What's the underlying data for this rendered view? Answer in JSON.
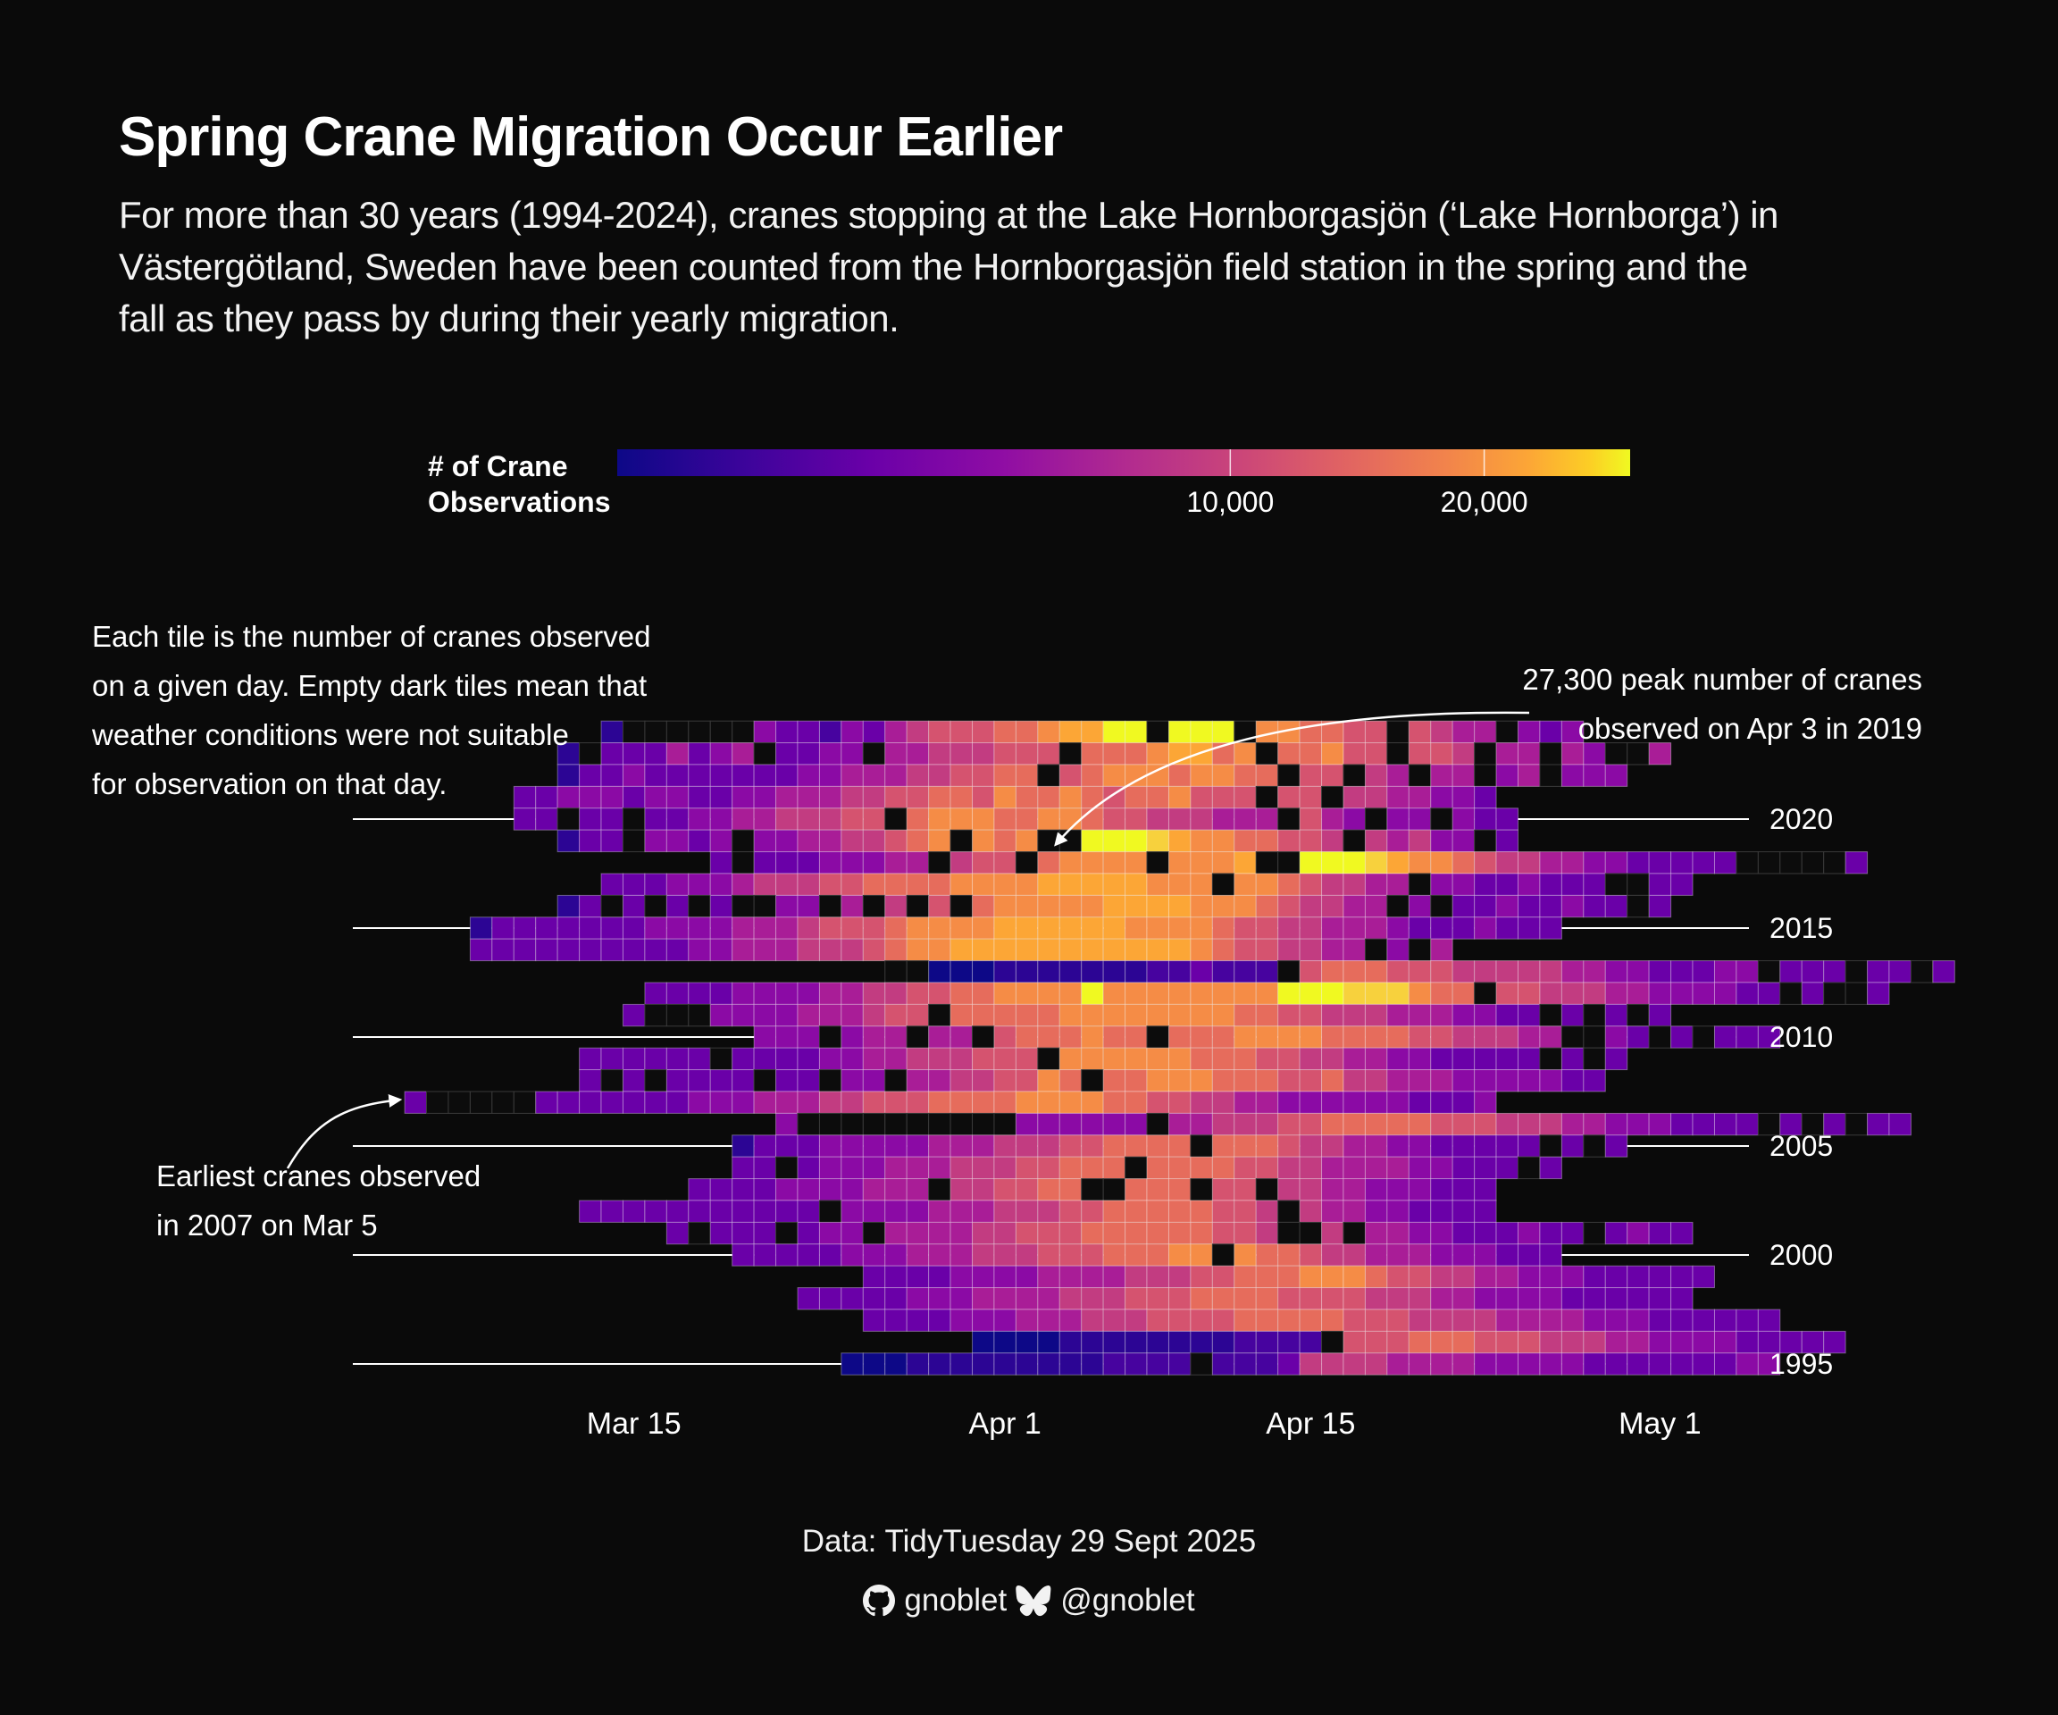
{
  "title": "Spring Crane Migration Occur Earlier",
  "subtitle": "For more than 30 years (1994-2024), cranes stopping at the Lake Hornborgasjön (‘Lake Hornborga’) in Västergötland, Sweden have been counted from the Hornborgasjön field station in the spring and the fall as they pass by during their yearly migration.",
  "caption": {
    "source": "Data: TidyTuesday 29 Sept 2025",
    "github_icon": "github-icon",
    "github": "gnoblet",
    "bluesky_icon": "bluesky-butterfly-icon",
    "bluesky": "@gnoblet"
  },
  "colors": {
    "background": "#0a0a0a",
    "palette": "plasma",
    "missing_tile": "#0c0c0c",
    "text": "#ffffff"
  },
  "chart_data": {
    "type": "heatmap",
    "x_axis": {
      "kind": "date",
      "ticks": [
        "Mar 15",
        "Apr 1",
        "Apr 15",
        "May 1"
      ],
      "tick_values": [
        "03-15",
        "04-01",
        "04-15",
        "05-01"
      ],
      "range": [
        "03-02",
        "05-04"
      ]
    },
    "y_axis": {
      "kind": "year",
      "ticks": [
        "1995",
        "2000",
        "2005",
        "2010",
        "2015",
        "2020"
      ],
      "tick_values": [
        1995,
        2000,
        2005,
        2010,
        2015,
        2020
      ],
      "range": [
        1994,
        2024
      ]
    },
    "legend": {
      "title_line1": "# of Crane",
      "title_line2": "Observations",
      "ticks": [
        "10,000",
        "20,000"
      ],
      "tick_values": [
        10000,
        20000
      ],
      "range": [
        0,
        27300
      ],
      "position": "top",
      "scale": "sqrt"
    },
    "rows": [
      {
        "year": 2024,
        "start": "03-14",
        "values": "1......cbbacbdefffgghiikk.kkk.hhggff.fedd.cbc"
      },
      {
        "year": 2023,
        "start": "03-12",
        "values": "1.bbbdbcd.bbcc.ddeeefff.ggghiigh.gghff.ffe.dd.dc..d"
      },
      {
        "year": 2022,
        "start": "03-12",
        "values": "1bbcbbbbbbbccdddeeffgg.fghhhghhgg.ff.ed.dd.cd.ccc"
      },
      {
        "year": 2021,
        "start": "03-10",
        "values": "bbcccbccbbccdddeeffggfhgghgfgghfff.ff.eeddccb"
      },
      {
        "year": 2020,
        "start": "03-10",
        "values": "bb.bb.bbccddeeeff.ghhhgghhgffeeeddd.fdc.cc.cbb"
      },
      {
        "year": 2019,
        "start": "03-12",
        "values": "1bb.ccbc.ccddeefgh.hgh..kkkjihhggffe.edecc.b"
      },
      {
        "year": 2018,
        "start": "03-19",
        "values": "b.bbbcccdd.eff.ghhhh.hhhi..kkkjihhgfeeddccbbbbb.....b"
      },
      {
        "year": 2017,
        "start": "03-14",
        "values": "bbbcccdeeeffgggghhhhiiiiihhh.hhgfeedd.ccbbcbbb..bb"
      },
      {
        "year": 2016,
        "start": "03-12",
        "values": "1b.b.b.b..cc.d.e.f.ghhhhhiiiihhhgfeedd.c.bbcbbcbb.b"
      },
      {
        "year": 2015,
        "start": "03-08",
        "values": "1bbbbbbbccccdddefffghhhhiiiiiihhhhgffeedddcbbbcbbb"
      },
      {
        "year": 2014,
        "start": "03-08",
        "values": "bbbbbbbbbbccdddeeefghhiiiiiiiiiiihgffeedd.c.d"
      },
      {
        "year": 2013,
        "start": "03-27",
        "values": "..0001111222345678.fgggfffeeeeeddccbbbcc.bbb.bb.b"
      },
      {
        "year": 2012,
        "start": "03-16",
        "values": "bbbbccccddeeffgghhhhkhhhhhhhhkkkjjjhgg.ffeeeddccccbb.b..b"
      },
      {
        "year": 2011,
        "start": "03-15",
        "values": "b...ccccdddeff.ggggghhhhhhhhggffeeedddccbb.b.b.b"
      },
      {
        "year": 2010,
        "start": "03-21",
        "values": "ccc.cdd.dd.fggghgg.ggghhhhggggffeeedd..cb.b.bbb"
      },
      {
        "year": 2009,
        "start": "03-13",
        "values": "bbbbbb.bbbbccddeeefff.hhhhhhgggffeeddccbbbbb.b.b"
      },
      {
        "year": 2008,
        "start": "03-13",
        "values": "b.b.bbbb.bb.cc.ddeeffhg.gghhhgggffgeedddcccccbb"
      },
      {
        "year": 2007,
        "start": "03-05",
        "values": "b.....bbbbbbbcccdddeefffgggghhhhggffeeddccccccbbbc"
      },
      {
        "year": 2006,
        "start": "03-22",
        "values": "c..........cccccc.ddeeeffgggggfffeeeddcccbbbb.b.b.bb"
      },
      {
        "year": 2005,
        "start": "03-20",
        "values": "1bbbcccccdddeeeffgggg.gggfeeddccbbbbb.b.b"
      },
      {
        "year": 2004,
        "start": "03-20",
        "values": "bb.bcccdddeeeffggg.ggggffeeddddccbbb.b"
      },
      {
        "year": 2003,
        "start": "03-18",
        "values": "bbbbccccddd.eeffgg..ggg.ff.eeddcccbbb"
      },
      {
        "year": 2002,
        "start": "03-13",
        "values": "bbbbbbbbbbb.ccccdddeeeffgggggffe.eddccbbbb"
      },
      {
        "year": 2001,
        "start": "03-17",
        "values": "b.bbb.bcc.ddddeefffggggggffe..e.ddccbbbcbb.bcbb"
      },
      {
        "year": 2000,
        "start": "03-20",
        "values": "bbbbbcccdddeeefffggghh.hggfeedddcccbbb"
      },
      {
        "year": 1999,
        "start": "03-26",
        "values": "bbbbccccddddeeeffggghhhgffeeddcccbbbbbb"
      },
      {
        "year": 1998,
        "start": "03-23",
        "values": "bbbbbcccddddeeefffggggffffeeeddccccbbbbbb"
      },
      {
        "year": 1997,
        "start": "03-26",
        "values": "bbbbcccdddeeeffffgggggfffeeeeddddcccbbbbbb"
      },
      {
        "year": 1996,
        "start": "03-31",
        "values": "0000111112223334.fffgggfffeeeddccccbbbbb"
      },
      {
        "year": 1995,
        "start": "03-25",
        "values": "0001111122223344.4445eeeeddddcccccbbbbbbbcc"
      }
    ],
    "annotations": [
      {
        "id": "legend-note",
        "lines": [
          "Each tile is the number of cranes observed",
          "on a given day. Empty dark tiles mean that",
          "weather conditions were not suitable",
          "for observation on that day."
        ]
      },
      {
        "id": "peak-note",
        "lines": [
          "27,300 peak number of cranes",
          "observed on Apr 3 in 2019"
        ],
        "target_date": "04-03",
        "target_year": 2019,
        "value": 27300
      },
      {
        "id": "earliest-note",
        "lines": [
          "Earliest cranes observed",
          " in 2007 on Mar 5"
        ],
        "target_date": "03-05",
        "target_year": 2007
      }
    ]
  }
}
